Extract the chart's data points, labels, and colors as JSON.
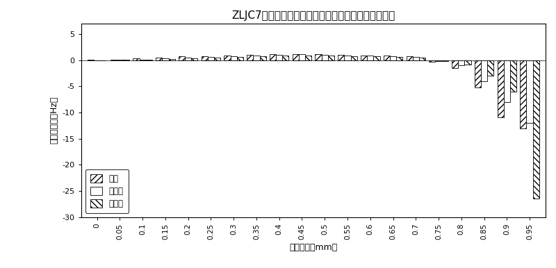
{
  "title": "ZLJC7型科氏流量计非均匀磨损三阶频率变化量实验値",
  "xlabel": "磨损厚度（mm）",
  "ylabel": "频率变化量（Hz）",
  "ylim": [
    -30,
    7
  ],
  "yticks": [
    5,
    0,
    -5,
    -10,
    -15,
    -20,
    -25,
    -30
  ],
  "categories": [
    "0",
    "0.05",
    "0.1",
    "0.15",
    "0.2",
    "0.25",
    "0.3",
    "0.35",
    "0.4",
    "0.45",
    "0.5",
    "0.55",
    "0.6",
    "0.65",
    "0.7",
    "0.75",
    "0.8",
    "0.85",
    "0.9",
    "0.95"
  ],
  "water_values": [
    0.05,
    0.1,
    0.3,
    0.5,
    0.7,
    0.8,
    0.9,
    1.0,
    1.1,
    1.2,
    1.1,
    1.0,
    0.9,
    0.9,
    0.7,
    -0.3,
    -1.5,
    -5.2,
    -11.0,
    -13.0
  ],
  "alcohol_values": [
    0.0,
    0.05,
    0.15,
    0.3,
    0.5,
    0.6,
    0.75,
    0.85,
    1.0,
    1.1,
    1.0,
    0.9,
    0.85,
    0.8,
    0.6,
    -0.2,
    -1.0,
    -4.0,
    -8.0,
    -12.0
  ],
  "oil_values": [
    0.0,
    0.05,
    0.1,
    0.2,
    0.35,
    0.5,
    0.6,
    0.7,
    0.85,
    0.95,
    0.9,
    0.8,
    0.75,
    0.65,
    0.5,
    -0.15,
    -0.8,
    -3.0,
    -6.0,
    -26.5
  ],
  "legend_labels": [
    "充水",
    "充酒精",
    "充煎油"
  ],
  "bar_width": 0.28,
  "hatch_water": "////",
  "hatch_alcohol": "",
  "hatch_oil": "\\\\\\\\",
  "color_water": "white",
  "color_alcohol": "white",
  "color_oil": "white",
  "edgecolor": "black",
  "figsize": [
    8.0,
    3.86
  ],
  "dpi": 100
}
